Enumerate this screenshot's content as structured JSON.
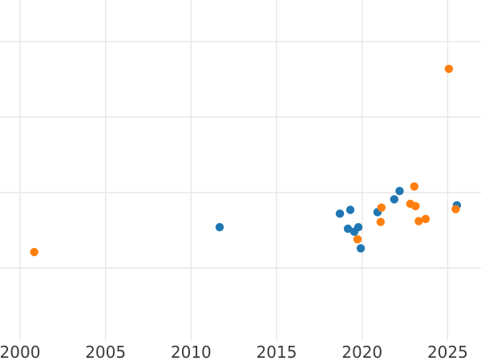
{
  "chart_data": {
    "type": "scatter",
    "title": "",
    "xlabel": "",
    "ylabel": "",
    "xlim": [
      1998.83,
      2026.95
    ],
    "ylim": [
      -0.234,
      4.553
    ],
    "x_ticks": [
      2000,
      2005,
      2010,
      2015,
      2020,
      2025
    ],
    "x_tick_labels": [
      "2000",
      "2005",
      "2010",
      "2015",
      "2020",
      "2025"
    ],
    "y_gridline_values": [
      1,
      2,
      3,
      4
    ],
    "grid": true,
    "legend": "none",
    "colors": {
      "grid": "#e7e7e7",
      "tick_label": "#3b3b3b",
      "background": "#ffffff",
      "series_blue": "#1f77b4",
      "series_orange": "#ff7f0e"
    },
    "series": [
      {
        "name": "series-blue",
        "color": "#1f77b4",
        "points": [
          [
            2011.67,
            1.54
          ],
          [
            2018.7,
            1.72
          ],
          [
            2019.17,
            1.52
          ],
          [
            2019.31,
            1.77
          ],
          [
            2019.54,
            1.48
          ],
          [
            2019.78,
            1.54
          ],
          [
            2019.92,
            1.26
          ],
          [
            2020.9,
            1.74
          ],
          [
            2021.88,
            1.91
          ],
          [
            2022.19,
            2.02
          ],
          [
            2025.54,
            1.83
          ]
        ]
      },
      {
        "name": "series-orange",
        "color": "#ff7f0e",
        "points": [
          [
            2000.83,
            1.21
          ],
          [
            2019.73,
            1.38
          ],
          [
            2021.08,
            1.61
          ],
          [
            2021.13,
            1.8
          ],
          [
            2022.82,
            1.85
          ],
          [
            2023.05,
            2.08
          ],
          [
            2023.12,
            1.82
          ],
          [
            2023.31,
            1.62
          ],
          [
            2023.71,
            1.65
          ],
          [
            2025.07,
            3.64
          ],
          [
            2025.47,
            1.78
          ]
        ]
      }
    ]
  }
}
